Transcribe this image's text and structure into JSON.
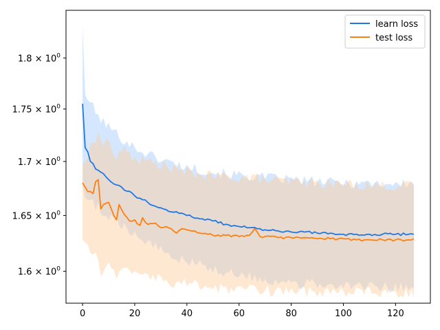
{
  "chart_data": {
    "type": "line",
    "title": "",
    "xlabel": "",
    "ylabel": "",
    "xlim": [
      -6.35,
      133.35
    ],
    "ylim": [
      1.572,
      1.848
    ],
    "yscale": "log",
    "grid": false,
    "legend_position": "top-right",
    "x_ticks": [
      0,
      20,
      40,
      60,
      80,
      100,
      120
    ],
    "x_tick_labels": [
      "0",
      "20",
      "40",
      "60",
      "80",
      "100",
      "120"
    ],
    "y_ticks": [
      1.6,
      1.65,
      1.7,
      1.75,
      1.8
    ],
    "y_tick_labels": [
      {
        "base": "1.6",
        "exp": "0"
      },
      {
        "base": "1.65",
        "exp": "0"
      },
      {
        "base": "1.7",
        "exp": "0"
      },
      {
        "base": "1.75",
        "exp": "0"
      },
      {
        "base": "1.8",
        "exp": "0"
      }
    ],
    "x_range": [
      0,
      127
    ],
    "series": [
      {
        "name": "learn loss",
        "color": "#1f77e4",
        "band_color": "#9fcaff",
        "key_points": [
          [
            0,
            1.755
          ],
          [
            1,
            1.713
          ],
          [
            2,
            1.709
          ],
          [
            3,
            1.7
          ],
          [
            4,
            1.698
          ],
          [
            5,
            1.693
          ],
          [
            7,
            1.69
          ],
          [
            10,
            1.683
          ],
          [
            12,
            1.679
          ],
          [
            15,
            1.676
          ],
          [
            20,
            1.668
          ],
          [
            25,
            1.662
          ],
          [
            30,
            1.657
          ],
          [
            35,
            1.653
          ],
          [
            40,
            1.65
          ],
          [
            45,
            1.647
          ],
          [
            50,
            1.645
          ],
          [
            55,
            1.642
          ],
          [
            60,
            1.64
          ],
          [
            65,
            1.639
          ],
          [
            70,
            1.637
          ],
          [
            75,
            1.636
          ],
          [
            80,
            1.635
          ],
          [
            85,
            1.635
          ],
          [
            90,
            1.634
          ],
          [
            95,
            1.634
          ],
          [
            100,
            1.633
          ],
          [
            105,
            1.633
          ],
          [
            110,
            1.633
          ],
          [
            115,
            1.633
          ],
          [
            120,
            1.633
          ],
          [
            125,
            1.633
          ],
          [
            127,
            1.633
          ]
        ],
        "upper_points": [
          [
            0,
            1.832
          ],
          [
            1,
            1.764
          ],
          [
            3,
            1.757
          ],
          [
            5,
            1.746
          ],
          [
            7,
            1.74
          ],
          [
            10,
            1.733
          ],
          [
            15,
            1.722
          ],
          [
            20,
            1.713
          ],
          [
            25,
            1.707
          ],
          [
            30,
            1.702
          ],
          [
            35,
            1.698
          ],
          [
            40,
            1.695
          ],
          [
            50,
            1.69
          ],
          [
            60,
            1.687
          ],
          [
            70,
            1.685
          ],
          [
            80,
            1.683
          ],
          [
            90,
            1.681
          ],
          [
            100,
            1.68
          ],
          [
            110,
            1.68
          ],
          [
            120,
            1.679
          ],
          [
            127,
            1.679
          ]
        ],
        "lower_points": [
          [
            0,
            1.68
          ],
          [
            1,
            1.666
          ],
          [
            3,
            1.663
          ],
          [
            5,
            1.659
          ],
          [
            7,
            1.656
          ],
          [
            10,
            1.65
          ],
          [
            15,
            1.642
          ],
          [
            20,
            1.634
          ],
          [
            25,
            1.626
          ],
          [
            30,
            1.62
          ],
          [
            35,
            1.613
          ],
          [
            40,
            1.609
          ],
          [
            50,
            1.602
          ],
          [
            60,
            1.597
          ],
          [
            70,
            1.593
          ],
          [
            80,
            1.59
          ],
          [
            90,
            1.588
          ],
          [
            100,
            1.587
          ],
          [
            110,
            1.586
          ],
          [
            120,
            1.586
          ],
          [
            127,
            1.586
          ]
        ]
      },
      {
        "name": "test loss",
        "color": "#ff7f0e",
        "band_color": "#ffcc99",
        "key_points": [
          [
            0,
            1.68
          ],
          [
            1,
            1.676
          ],
          [
            2,
            1.672
          ],
          [
            3,
            1.672
          ],
          [
            4,
            1.67
          ],
          [
            5,
            1.681
          ],
          [
            6,
            1.683
          ],
          [
            7,
            1.656
          ],
          [
            8,
            1.66
          ],
          [
            10,
            1.662
          ],
          [
            12,
            1.65
          ],
          [
            13,
            1.646
          ],
          [
            14,
            1.66
          ],
          [
            16,
            1.651
          ],
          [
            18,
            1.645
          ],
          [
            20,
            1.646
          ],
          [
            22,
            1.641
          ],
          [
            23,
            1.648
          ],
          [
            25,
            1.642
          ],
          [
            28,
            1.643
          ],
          [
            30,
            1.639
          ],
          [
            32,
            1.64
          ],
          [
            34,
            1.638
          ],
          [
            36,
            1.634
          ],
          [
            38,
            1.638
          ],
          [
            40,
            1.637
          ],
          [
            43,
            1.636
          ],
          [
            45,
            1.634
          ],
          [
            48,
            1.633
          ],
          [
            50,
            1.632
          ],
          [
            55,
            1.632
          ],
          [
            60,
            1.631
          ],
          [
            62,
            1.631
          ],
          [
            64,
            1.632
          ],
          [
            66,
            1.638
          ],
          [
            68,
            1.631
          ],
          [
            70,
            1.631
          ],
          [
            75,
            1.63
          ],
          [
            80,
            1.63
          ],
          [
            85,
            1.63
          ],
          [
            90,
            1.629
          ],
          [
            95,
            1.629
          ],
          [
            100,
            1.629
          ],
          [
            105,
            1.628
          ],
          [
            110,
            1.628
          ],
          [
            115,
            1.628
          ],
          [
            120,
            1.628
          ],
          [
            125,
            1.628
          ],
          [
            127,
            1.629
          ]
        ],
        "upper_points": [
          [
            0,
            1.697
          ],
          [
            1,
            1.7
          ],
          [
            3,
            1.712
          ],
          [
            5,
            1.722
          ],
          [
            6,
            1.733
          ],
          [
            7,
            1.716
          ],
          [
            10,
            1.72
          ],
          [
            13,
            1.701
          ],
          [
            15,
            1.712
          ],
          [
            20,
            1.703
          ],
          [
            25,
            1.7
          ],
          [
            30,
            1.697
          ],
          [
            35,
            1.693
          ],
          [
            40,
            1.69
          ],
          [
            45,
            1.688
          ],
          [
            50,
            1.686
          ],
          [
            55,
            1.686
          ],
          [
            60,
            1.685
          ],
          [
            65,
            1.685
          ],
          [
            70,
            1.683
          ],
          [
            80,
            1.681
          ],
          [
            90,
            1.68
          ],
          [
            100,
            1.679
          ],
          [
            110,
            1.678
          ],
          [
            120,
            1.677
          ],
          [
            127,
            1.677
          ]
        ],
        "lower_points": [
          [
            0,
            1.628
          ],
          [
            1,
            1.626
          ],
          [
            2,
            1.624
          ],
          [
            3,
            1.617
          ],
          [
            5,
            1.62
          ],
          [
            7,
            1.598
          ],
          [
            10,
            1.605
          ],
          [
            13,
            1.597
          ],
          [
            15,
            1.601
          ],
          [
            20,
            1.596
          ],
          [
            25,
            1.594
          ],
          [
            30,
            1.592
          ],
          [
            35,
            1.59
          ],
          [
            40,
            1.589
          ],
          [
            45,
            1.587
          ],
          [
            50,
            1.585
          ],
          [
            55,
            1.585
          ],
          [
            60,
            1.584
          ],
          [
            65,
            1.584
          ],
          [
            70,
            1.583
          ],
          [
            80,
            1.583
          ],
          [
            90,
            1.582
          ],
          [
            100,
            1.582
          ],
          [
            110,
            1.582
          ],
          [
            120,
            1.581
          ],
          [
            127,
            1.581
          ]
        ]
      }
    ]
  }
}
